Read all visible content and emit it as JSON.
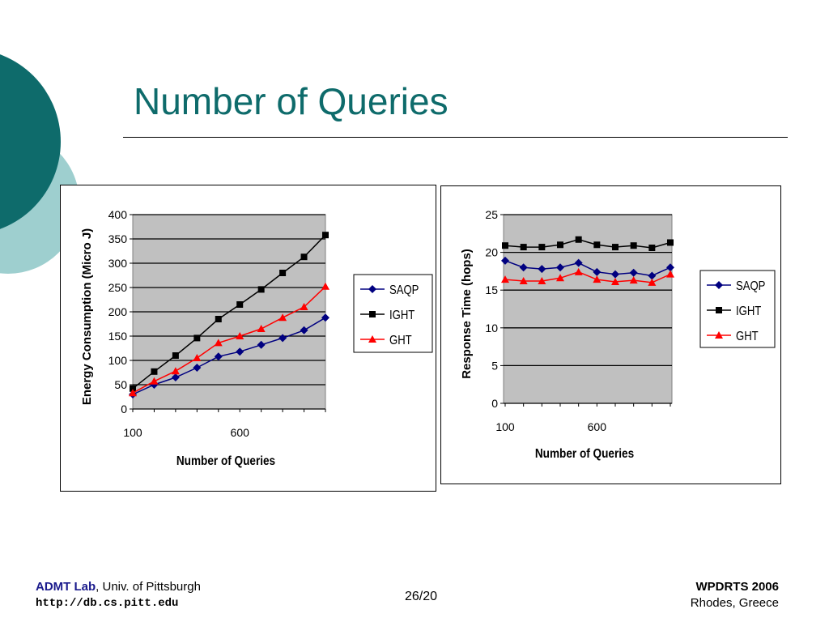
{
  "slide": {
    "title": "Number of Queries",
    "page_number": "26/20"
  },
  "footer": {
    "lab": "ADMT Lab",
    "affiliation": ", Univ. of Pittsburgh",
    "url": "http://db.cs.pitt.edu",
    "conference": "WPDRTS 2006",
    "location": "Rhodes, Greece"
  },
  "colors": {
    "title": "#0e6b6b",
    "plot_area": "#c0c0c0",
    "SAQP": "#000080",
    "IGHT": "#000000",
    "GHT": "#ff0000",
    "deco_dark": "#0e6b6b",
    "deco_light": "#9ecfcf"
  },
  "chart_data": [
    {
      "type": "line",
      "title": "",
      "xlabel": "Number of Queries",
      "ylabel": "Energy Consumption (Micro J)",
      "x_tick_labels": [
        "100",
        "600"
      ],
      "x": [
        100,
        200,
        300,
        400,
        500,
        600,
        700,
        800,
        900,
        1000
      ],
      "ylim": [
        0,
        400
      ],
      "y_ticks": [
        0,
        50,
        100,
        150,
        200,
        250,
        300,
        350,
        400
      ],
      "grid": true,
      "legend_position": "right",
      "series": [
        {
          "name": "SAQP",
          "marker": "diamond",
          "values": [
            30,
            50,
            65,
            85,
            108,
            118,
            132,
            146,
            162,
            188
          ]
        },
        {
          "name": "IGHT",
          "marker": "square",
          "values": [
            42,
            77,
            110,
            146,
            185,
            215,
            246,
            280,
            313,
            358
          ]
        },
        {
          "name": "GHT",
          "marker": "triangle",
          "values": [
            33,
            57,
            78,
            105,
            136,
            150,
            165,
            188,
            210,
            252
          ]
        }
      ]
    },
    {
      "type": "line",
      "title": "",
      "xlabel": "Number of Queries",
      "ylabel": "Response Time (hops)",
      "x_tick_labels": [
        "100",
        "600"
      ],
      "x": [
        100,
        200,
        300,
        400,
        500,
        600,
        700,
        800,
        900,
        1000
      ],
      "ylim": [
        0,
        25
      ],
      "y_ticks": [
        0,
        5,
        10,
        15,
        20,
        25
      ],
      "grid": true,
      "legend_position": "right",
      "series": [
        {
          "name": "SAQP",
          "marker": "diamond",
          "values": [
            18.9,
            18.0,
            17.8,
            18.0,
            18.6,
            17.4,
            17.1,
            17.3,
            16.9,
            18.0
          ]
        },
        {
          "name": "IGHT",
          "marker": "square",
          "values": [
            20.9,
            20.7,
            20.7,
            21.0,
            21.7,
            21.0,
            20.7,
            20.9,
            20.6,
            21.3
          ]
        },
        {
          "name": "GHT",
          "marker": "triangle",
          "values": [
            16.4,
            16.2,
            16.2,
            16.6,
            17.4,
            16.4,
            16.1,
            16.3,
            16.0,
            17.1
          ]
        }
      ]
    }
  ]
}
